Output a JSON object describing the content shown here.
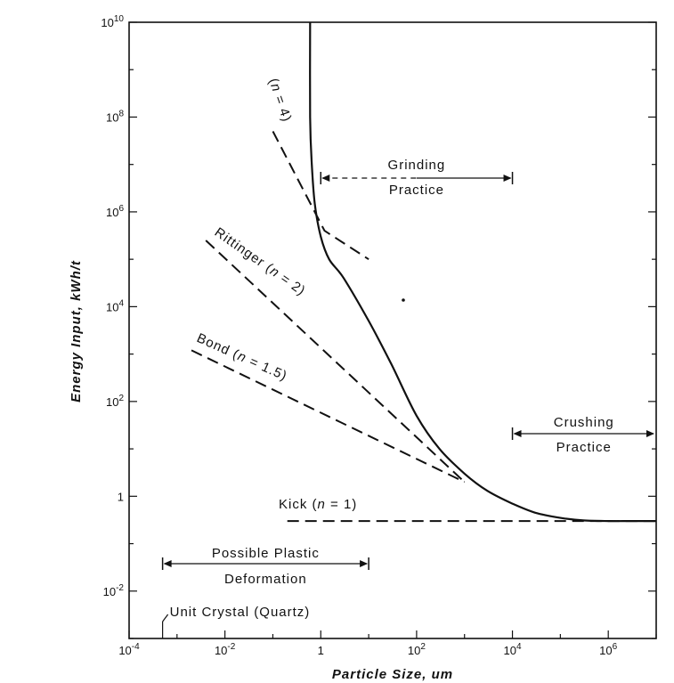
{
  "chart_data": {
    "type": "line",
    "xlabel": "Particle Size, um",
    "ylabel": "Energy Input, kWh/t",
    "x_scale": "log",
    "y_scale": "log",
    "xlim": [
      0.0001,
      10000000
    ],
    "ylim": [
      0.001,
      10000000000
    ],
    "x_ticks": [
      {
        "value": 0.0001,
        "base": "10",
        "exp": "-4"
      },
      {
        "value": 0.01,
        "base": "10",
        "exp": "-2"
      },
      {
        "value": 1,
        "base": "1",
        "exp": ""
      },
      {
        "value": 100,
        "base": "10",
        "exp": "2"
      },
      {
        "value": 10000,
        "base": "10",
        "exp": "4"
      },
      {
        "value": 1000000,
        "base": "10",
        "exp": "6"
      }
    ],
    "y_ticks": [
      {
        "value": 0.01,
        "base": "10",
        "exp": "-2"
      },
      {
        "value": 1,
        "base": "1",
        "exp": ""
      },
      {
        "value": 100,
        "base": "10",
        "exp": "2"
      },
      {
        "value": 10000,
        "base": "10",
        "exp": "4"
      },
      {
        "value": 1000000,
        "base": "10",
        "exp": "6"
      },
      {
        "value": 100000000,
        "base": "10",
        "exp": "8"
      },
      {
        "value": 10000000000,
        "base": "10",
        "exp": "10"
      }
    ],
    "grid": false,
    "series": [
      {
        "label_parts": [
          "",
          "(",
          "n",
          " = 4)"
        ],
        "style": "dashed",
        "x": [
          0.1,
          1.2,
          10
        ],
        "y": [
          50000000,
          400000,
          100000
        ]
      },
      {
        "label_parts": [
          "Rittinger ",
          "(",
          "n",
          " = 2)"
        ],
        "style": "dashed",
        "x": [
          0.004,
          1000
        ],
        "y": [
          250000,
          2
        ]
      },
      {
        "label_parts": [
          "Bond ",
          "(",
          "n",
          " = 1.5)"
        ],
        "style": "dashed",
        "x": [
          0.002,
          1000
        ],
        "y": [
          1200,
          2
        ]
      },
      {
        "label_parts": [
          "Kick  ",
          "(",
          "n",
          " = 1)"
        ],
        "style": "dashed",
        "x": [
          0.2,
          10000000
        ],
        "y": [
          0.3,
          0.3
        ]
      },
      {
        "label_parts": [],
        "style": "solid",
        "x": [
          0.6,
          0.6,
          0.65,
          0.75,
          1,
          1.5,
          3,
          10,
          30,
          100,
          300,
          1000,
          3000,
          10000,
          30000,
          100000,
          300000,
          1000000,
          3000000,
          10000000
        ],
        "y": [
          10000000000,
          100000000,
          10000000,
          1500000,
          300000,
          100000,
          40000,
          5000,
          600,
          50,
          10,
          3,
          1.3,
          0.7,
          0.45,
          0.35,
          0.31,
          0.3,
          0.3,
          0.3
        ]
      }
    ],
    "annotations": [
      {
        "id": "grinding",
        "lines": [
          "Grinding",
          "Practice"
        ],
        "x_from": 1,
        "x_to": 10000,
        "left_arrow_dashed": true
      },
      {
        "id": "crushing",
        "lines": [
          "Crushing",
          "Practice"
        ],
        "x_from": 10000,
        "x_to": 10000000,
        "left_arrow_dashed": false
      },
      {
        "id": "plastic",
        "lines": [
          "Possible Plastic",
          "Deformation"
        ],
        "x_from": 0.0005,
        "x_to": 10,
        "left_arrow_dashed": false
      },
      {
        "id": "unit-crystal",
        "lines": [
          "Unit Crystal (Quartz)"
        ],
        "x_at": 0.0005
      }
    ]
  }
}
